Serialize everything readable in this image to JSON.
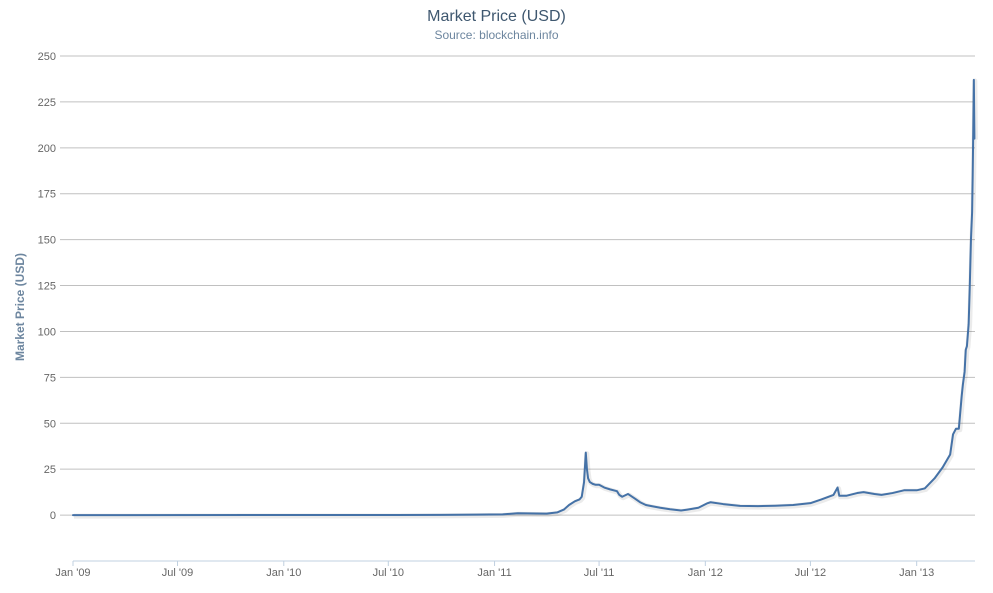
{
  "chart_data": {
    "type": "line",
    "title": "Market Price (USD)",
    "subtitle": "Source: blockchain.info",
    "xlabel": "",
    "ylabel": "Market Price (USD)",
    "ylim": [
      -25,
      250
    ],
    "yticks": [
      0,
      25,
      50,
      75,
      100,
      125,
      150,
      175,
      200,
      225,
      250
    ],
    "xlim": [
      "2009-01-01",
      "2013-04-12"
    ],
    "xticks": [
      {
        "label": "Jan '09",
        "date": "2009-01-01"
      },
      {
        "label": "Jul '09",
        "date": "2009-07-01"
      },
      {
        "label": "Jan '10",
        "date": "2010-01-01"
      },
      {
        "label": "Jul '10",
        "date": "2010-07-01"
      },
      {
        "label": "Jan '11",
        "date": "2011-01-01"
      },
      {
        "label": "Jul '11",
        "date": "2011-07-01"
      },
      {
        "label": "Jan '12",
        "date": "2012-01-01"
      },
      {
        "label": "Jul '12",
        "date": "2012-07-01"
      },
      {
        "label": "Jan '13",
        "date": "2013-01-01"
      }
    ],
    "grid": true,
    "legend": "none",
    "series": [
      {
        "color": "#4572a7",
        "points": [
          [
            "2009-01-01",
            0
          ],
          [
            "2010-07-15",
            0.05
          ],
          [
            "2010-10-01",
            0.1
          ],
          [
            "2010-12-01",
            0.25
          ],
          [
            "2011-01-15",
            0.4
          ],
          [
            "2011-02-10",
            1.0
          ],
          [
            "2011-03-15",
            0.9
          ],
          [
            "2011-04-01",
            0.8
          ],
          [
            "2011-04-20",
            1.5
          ],
          [
            "2011-05-01",
            3.0
          ],
          [
            "2011-05-10",
            5.5
          ],
          [
            "2011-05-20",
            7.5
          ],
          [
            "2011-05-28",
            8.5
          ],
          [
            "2011-06-01",
            10.0
          ],
          [
            "2011-06-05",
            18.0
          ],
          [
            "2011-06-08",
            34.0
          ],
          [
            "2011-06-10",
            25.0
          ],
          [
            "2011-06-12",
            20.0
          ],
          [
            "2011-06-15",
            18.0
          ],
          [
            "2011-06-20",
            17.0
          ],
          [
            "2011-06-25",
            16.5
          ],
          [
            "2011-07-01",
            16.5
          ],
          [
            "2011-07-10",
            15.0
          ],
          [
            "2011-07-20",
            14.0
          ],
          [
            "2011-08-01",
            13.0
          ],
          [
            "2011-08-05",
            11.0
          ],
          [
            "2011-08-10",
            10.0
          ],
          [
            "2011-08-20",
            11.5
          ],
          [
            "2011-09-01",
            9.0
          ],
          [
            "2011-09-10",
            7.0
          ],
          [
            "2011-09-20",
            5.5
          ],
          [
            "2011-10-01",
            4.8
          ],
          [
            "2011-10-15",
            4.0
          ],
          [
            "2011-11-01",
            3.2
          ],
          [
            "2011-11-20",
            2.5
          ],
          [
            "2011-12-01",
            3.0
          ],
          [
            "2011-12-20",
            4.0
          ],
          [
            "2012-01-05",
            6.5
          ],
          [
            "2012-01-10",
            7.0
          ],
          [
            "2012-02-01",
            6.0
          ],
          [
            "2012-03-01",
            5.0
          ],
          [
            "2012-04-01",
            4.9
          ],
          [
            "2012-05-01",
            5.1
          ],
          [
            "2012-06-01",
            5.5
          ],
          [
            "2012-07-01",
            6.5
          ],
          [
            "2012-07-20",
            8.5
          ],
          [
            "2012-08-10",
            11.0
          ],
          [
            "2012-08-17",
            15.0
          ],
          [
            "2012-08-20",
            10.5
          ],
          [
            "2012-09-01",
            10.5
          ],
          [
            "2012-09-20",
            12.0
          ],
          [
            "2012-10-01",
            12.5
          ],
          [
            "2012-10-20",
            11.5
          ],
          [
            "2012-11-01",
            11.0
          ],
          [
            "2012-11-20",
            12.0
          ],
          [
            "2012-12-10",
            13.5
          ],
          [
            "2013-01-01",
            13.5
          ],
          [
            "2013-01-15",
            14.5
          ],
          [
            "2013-02-01",
            20.0
          ],
          [
            "2013-02-15",
            26.0
          ],
          [
            "2013-02-28",
            33.0
          ],
          [
            "2013-03-05",
            44.0
          ],
          [
            "2013-03-10",
            47.0
          ],
          [
            "2013-03-15",
            47.0
          ],
          [
            "2013-03-20",
            65.0
          ],
          [
            "2013-03-22",
            71.0
          ],
          [
            "2013-03-25",
            78.0
          ],
          [
            "2013-03-27",
            90.0
          ],
          [
            "2013-03-29",
            92.0
          ],
          [
            "2013-04-01",
            104.0
          ],
          [
            "2013-04-03",
            125.0
          ],
          [
            "2013-04-05",
            150.0
          ],
          [
            "2013-04-07",
            165.0
          ],
          [
            "2013-04-08",
            185.0
          ],
          [
            "2013-04-09",
            210.0
          ],
          [
            "2013-04-10",
            237.0
          ],
          [
            "2013-04-11",
            205.0
          ]
        ]
      }
    ]
  }
}
